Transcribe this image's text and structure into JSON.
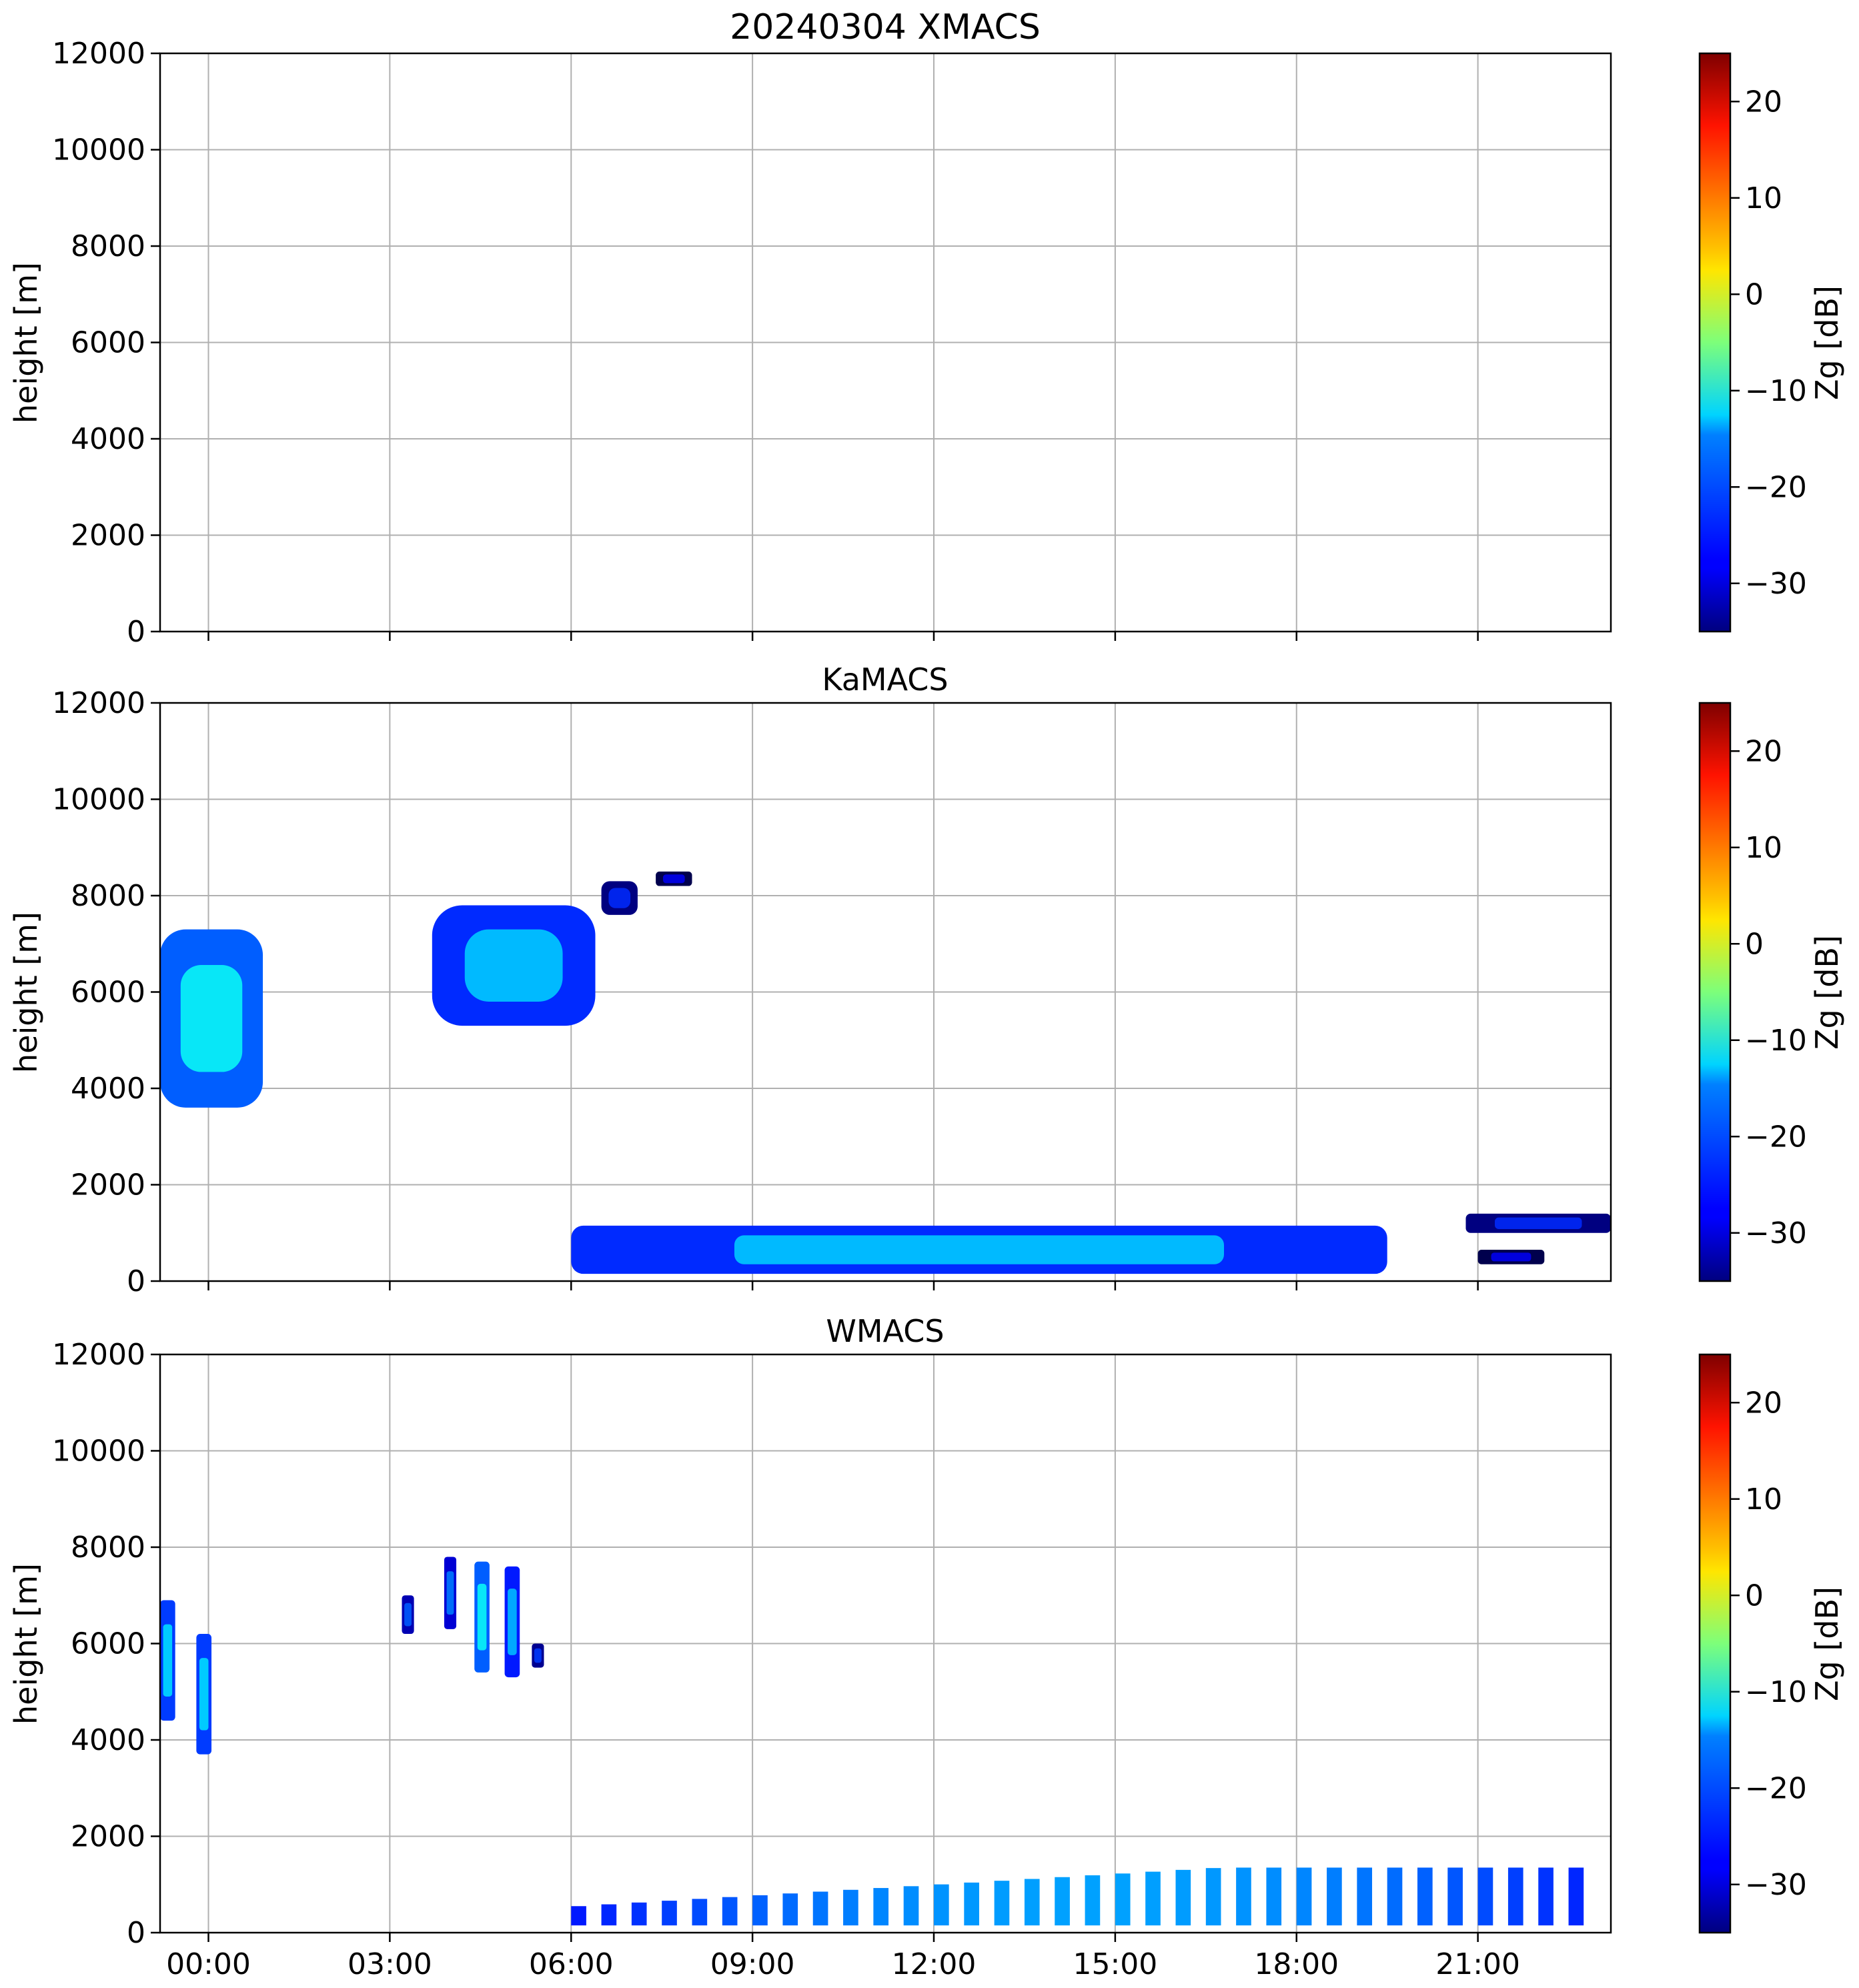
{
  "figure": {
    "background": "#ffffff",
    "grid_color": "#b0b0b0",
    "colormap": "jet"
  },
  "chart_data": [
    {
      "type": "heatmap",
      "title": "20240304 XMACS",
      "xlabel": "",
      "ylabel": "height [m]",
      "xlim_hours": [
        -0.8,
        23.2
      ],
      "ylim": [
        0,
        12000
      ],
      "yticks": [
        0,
        2000,
        4000,
        6000,
        8000,
        10000,
        12000
      ],
      "ytick_labels": [
        "0",
        "2000",
        "4000",
        "6000",
        "8000",
        "10000",
        "12000"
      ],
      "xticks_hours": [
        0,
        3,
        6,
        9,
        12,
        15,
        18,
        21
      ],
      "xtick_labels": [],
      "grid": true,
      "colorbar": {
        "label": "Zg [dB]",
        "range": [
          -35,
          25
        ],
        "ticks": [
          -30,
          -20,
          -10,
          0,
          10,
          20
        ],
        "tick_labels": [
          "−30",
          "−20",
          "−10",
          "0",
          "10",
          "20"
        ]
      },
      "echoes": []
    },
    {
      "type": "heatmap",
      "title": "KaMACS",
      "xlabel": "",
      "ylabel": "height [m]",
      "xlim_hours": [
        -0.8,
        23.2
      ],
      "ylim": [
        0,
        12000
      ],
      "yticks": [
        0,
        2000,
        4000,
        6000,
        8000,
        10000,
        12000
      ],
      "ytick_labels": [
        "0",
        "2000",
        "4000",
        "6000",
        "8000",
        "10000",
        "12000"
      ],
      "xticks_hours": [
        0,
        3,
        6,
        9,
        12,
        15,
        18,
        21
      ],
      "xtick_labels": [],
      "grid": true,
      "colorbar": {
        "label": "Zg [dB]",
        "range": [
          -35,
          25
        ],
        "ticks": [
          -30,
          -20,
          -10,
          0,
          10,
          20
        ],
        "tick_labels": [
          "−30",
          "−20",
          "−10",
          "0",
          "10",
          "20"
        ]
      },
      "echoes": [
        {
          "region": "cirrus-early",
          "t_start": -0.8,
          "t_end": 0.9,
          "h_base": 3600,
          "h_top": 7300,
          "zg_peak": -12
        },
        {
          "region": "cirrus-mid",
          "t_start": 3.7,
          "t_end": 6.4,
          "h_base": 5300,
          "h_top": 7800,
          "zg_peak": -15
        },
        {
          "region": "cirrus-small",
          "t_start": 6.5,
          "t_end": 7.1,
          "h_base": 7600,
          "h_top": 8300,
          "zg_peak": -25
        },
        {
          "region": "cirrus-fragment",
          "t_start": 7.4,
          "t_end": 8.0,
          "h_base": 8200,
          "h_top": 8500,
          "zg_peak": -28
        },
        {
          "region": "boundary-layer",
          "t_start": 6.0,
          "t_end": 19.5,
          "h_base": 150,
          "h_top": 1150,
          "zg_peak": -15
        },
        {
          "region": "boundary-layer-late",
          "t_start": 20.8,
          "t_end": 23.2,
          "h_base": 1000,
          "h_top": 1400,
          "zg_peak": -25
        },
        {
          "region": "low-patch-late",
          "t_start": 21.0,
          "t_end": 22.1,
          "h_base": 350,
          "h_top": 650,
          "zg_peak": -28
        }
      ]
    },
    {
      "type": "heatmap",
      "title": "WMACS",
      "xlabel": "",
      "ylabel": "height [m]",
      "xlim_hours": [
        -0.8,
        23.2
      ],
      "ylim": [
        0,
        12000
      ],
      "yticks": [
        0,
        2000,
        4000,
        6000,
        8000,
        10000,
        12000
      ],
      "ytick_labels": [
        "0",
        "2000",
        "4000",
        "6000",
        "8000",
        "10000",
        "12000"
      ],
      "xticks_hours": [
        0,
        3,
        6,
        9,
        12,
        15,
        18,
        21
      ],
      "xtick_labels": [
        "00:00",
        "03:00",
        "06:00",
        "09:00",
        "12:00",
        "15:00",
        "18:00",
        "21:00"
      ],
      "grid": true,
      "colorbar": {
        "label": "Zg [dB]",
        "range": [
          -35,
          25
        ],
        "ticks": [
          -30,
          -20,
          -10,
          0,
          10,
          20
        ],
        "tick_labels": [
          "−30",
          "−20",
          "−10",
          "0",
          "10",
          "20"
        ]
      },
      "echoes": [
        {
          "region": "stripe",
          "t_start": -0.8,
          "t_end": -0.55,
          "h_base": 4400,
          "h_top": 6900,
          "zg_peak": -14
        },
        {
          "region": "stripe",
          "t_start": -0.2,
          "t_end": 0.05,
          "h_base": 3700,
          "h_top": 6200,
          "zg_peak": -14
        },
        {
          "region": "stripe",
          "t_start": 3.2,
          "t_end": 3.4,
          "h_base": 6200,
          "h_top": 7000,
          "zg_peak": -22
        },
        {
          "region": "stripe",
          "t_start": 3.9,
          "t_end": 4.1,
          "h_base": 6300,
          "h_top": 7800,
          "zg_peak": -20
        },
        {
          "region": "stripe",
          "t_start": 4.4,
          "t_end": 4.65,
          "h_base": 5400,
          "h_top": 7700,
          "zg_peak": -12
        },
        {
          "region": "stripe",
          "t_start": 4.9,
          "t_end": 5.15,
          "h_base": 5300,
          "h_top": 7600,
          "zg_peak": -16
        },
        {
          "region": "stripe",
          "t_start": 5.35,
          "t_end": 5.55,
          "h_base": 5500,
          "h_top": 6000,
          "zg_peak": -24
        },
        {
          "region": "boundary-layer-columns",
          "t_start": 6.0,
          "t_end": 23.0,
          "column_period_hours": 0.5,
          "h_base": 150,
          "h_top": 1350,
          "zg_peak": -18
        }
      ]
    }
  ]
}
